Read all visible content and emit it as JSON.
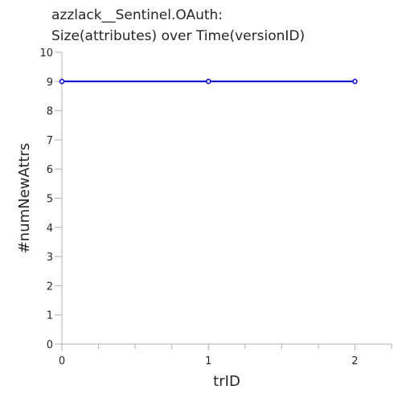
{
  "chart_data": {
    "type": "line",
    "title_lines": [
      "azzlack__Sentinel.OAuth:",
      "Size(attributes) over Time(versionID)"
    ],
    "xlabel": "trID",
    "ylabel": "#numNewAttrs",
    "xlim": [
      0,
      2.25
    ],
    "ylim": [
      0,
      10
    ],
    "x_ticks": [
      0,
      1,
      2
    ],
    "x_minor_ticks": [
      0.25,
      0.5,
      0.75,
      1.25,
      1.5,
      1.75,
      2.25
    ],
    "y_ticks": [
      0,
      1,
      2,
      3,
      4,
      5,
      6,
      7,
      8,
      9,
      10
    ],
    "grid": false,
    "series": [
      {
        "color": "#0000cc",
        "x": [
          0,
          1,
          2
        ],
        "y": [
          9,
          9,
          9
        ]
      }
    ]
  }
}
